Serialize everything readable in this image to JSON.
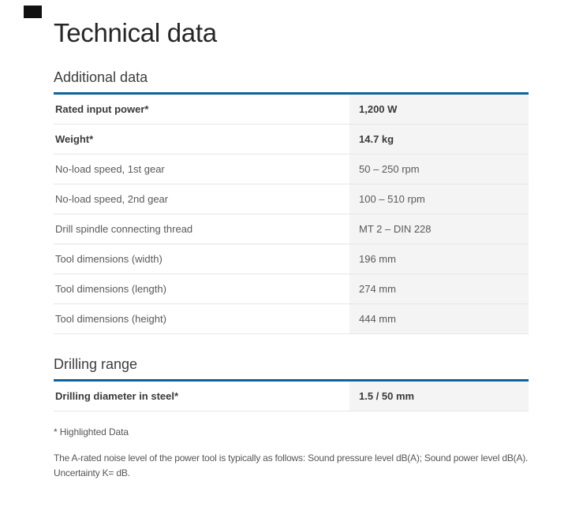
{
  "page": {
    "title": "Technical data"
  },
  "sections": [
    {
      "heading": "Additional data",
      "rows": [
        {
          "label": "Rated input power*",
          "value": "1,200 W",
          "bold": true
        },
        {
          "label": "Weight*",
          "value": "14.7 kg",
          "bold": true
        },
        {
          "label": "No-load speed, 1st gear",
          "value": "50 – 250 rpm",
          "bold": false
        },
        {
          "label": "No-load speed, 2nd gear",
          "value": "100 – 510 rpm",
          "bold": false
        },
        {
          "label": "Drill spindle connecting thread",
          "value": "MT 2 – DIN 228",
          "bold": false
        },
        {
          "label": "Tool dimensions (width)",
          "value": "196 mm",
          "bold": false
        },
        {
          "label": "Tool dimensions (length)",
          "value": "274 mm",
          "bold": false
        },
        {
          "label": "Tool dimensions (height)",
          "value": "444 mm",
          "bold": false
        }
      ]
    },
    {
      "heading": "Drilling range",
      "rows": [
        {
          "label": "Drilling diameter in steel*",
          "value": "1.5 / 50 mm",
          "bold": true
        }
      ]
    }
  ],
  "footnotes": {
    "highlighted": "* Highlighted Data",
    "noise": "The A-rated noise level of the power tool is typically as follows: Sound pressure level dB(A); Sound power level dB(A). Uncertainty K= dB."
  },
  "colors": {
    "accent_blue": "#0f629c",
    "value_cell_bg": "#f4f4f4",
    "row_separator": "#e6e6e6",
    "marker_black": "#111111"
  }
}
